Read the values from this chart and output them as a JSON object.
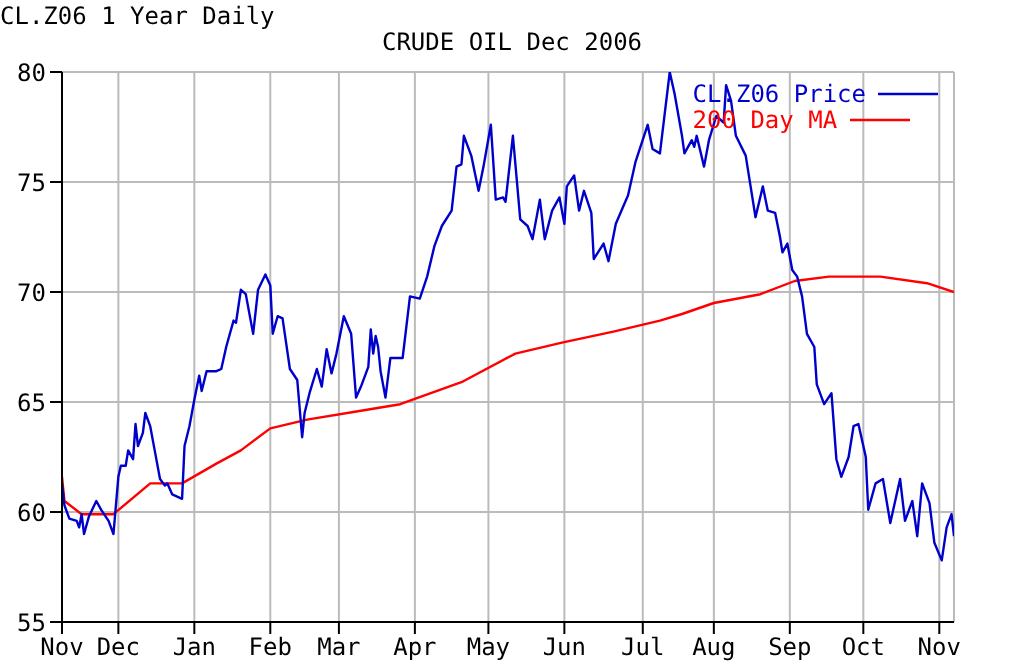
{
  "chart_data": {
    "type": "line",
    "title": "CRUDE OIL Dec 2006",
    "annotations": [
      "CL.Z06 1 Year Daily"
    ],
    "xlim": [
      "2005-11-08",
      "2006-11-07"
    ],
    "xticks": [
      {
        "value": "2005-11-08",
        "label": "Nov"
      },
      {
        "value": "2005-12-01",
        "label": "Dec"
      },
      {
        "value": "2006-01-01",
        "label": "Jan"
      },
      {
        "value": "2006-02-01",
        "label": "Feb"
      },
      {
        "value": "2006-03-01",
        "label": "Mar"
      },
      {
        "value": "2006-04-01",
        "label": "Apr"
      },
      {
        "value": "2006-05-01",
        "label": "May"
      },
      {
        "value": "2006-06-01",
        "label": "Jun"
      },
      {
        "value": "2006-07-03",
        "label": "Jul"
      },
      {
        "value": "2006-08-01",
        "label": "Aug"
      },
      {
        "value": "2006-09-01",
        "label": "Sep"
      },
      {
        "value": "2006-10-01",
        "label": "Oct"
      },
      {
        "value": "2006-11-01",
        "label": "Nov"
      }
    ],
    "ylim": [
      55,
      80
    ],
    "yticks": [
      55,
      60,
      65,
      70,
      75,
      80
    ],
    "grid": true,
    "legend": "top right",
    "marker": "none",
    "line_style": "solid",
    "series": [
      {
        "name": "CL.Z06 Price",
        "color": "#0000cc",
        "x": [
          "2005-11-08",
          "2005-11-09",
          "2005-11-11",
          "2005-11-14",
          "2005-11-15",
          "2005-11-16",
          "2005-11-17",
          "2005-11-19",
          "2005-11-22",
          "2005-11-24",
          "2005-11-27",
          "2005-11-29",
          "2005-12-01",
          "2005-12-02",
          "2005-12-04",
          "2005-12-05",
          "2005-12-07",
          "2005-12-08",
          "2005-12-09",
          "2005-12-11",
          "2005-12-12",
          "2005-12-14",
          "2005-12-16",
          "2005-12-18",
          "2005-12-20",
          "2005-12-21",
          "2005-12-23",
          "2005-12-25",
          "2005-12-27",
          "2005-12-28",
          "2005-12-30",
          "2006-01-01",
          "2006-01-03",
          "2006-01-04",
          "2006-01-06",
          "2006-01-10",
          "2006-01-12",
          "2006-01-14",
          "2006-01-17",
          "2006-01-18",
          "2006-01-20",
          "2006-01-22",
          "2006-01-24",
          "2006-01-25",
          "2006-01-27",
          "2006-01-30",
          "2006-02-01",
          "2006-02-02",
          "2006-02-04",
          "2006-02-06",
          "2006-02-09",
          "2006-02-12",
          "2006-02-14",
          "2006-02-15",
          "2006-02-17",
          "2006-02-20",
          "2006-02-22",
          "2006-02-24",
          "2006-02-26",
          "2006-02-28",
          "2006-03-03",
          "2006-03-06",
          "2006-03-08",
          "2006-03-10",
          "2006-03-13",
          "2006-03-14",
          "2006-03-15",
          "2006-03-16",
          "2006-03-17",
          "2006-03-18",
          "2006-03-20",
          "2006-03-22",
          "2006-03-27",
          "2006-03-30",
          "2006-04-03",
          "2006-04-06",
          "2006-04-09",
          "2006-04-12",
          "2006-04-16",
          "2006-04-18",
          "2006-04-20",
          "2006-04-21",
          "2006-04-24",
          "2006-04-27",
          "2006-04-29",
          "2006-05-02",
          "2006-05-04",
          "2006-05-07",
          "2006-05-08",
          "2006-05-11",
          "2006-05-14",
          "2006-05-17",
          "2006-05-19",
          "2006-05-22",
          "2006-05-24",
          "2006-05-27",
          "2006-05-30",
          "2006-06-01",
          "2006-06-02",
          "2006-06-05",
          "2006-06-07",
          "2006-06-09",
          "2006-06-12",
          "2006-06-13",
          "2006-06-17",
          "2006-06-19",
          "2006-06-22",
          "2006-06-27",
          "2006-06-30",
          "2006-07-05",
          "2006-07-07",
          "2006-07-10",
          "2006-07-14",
          "2006-07-16",
          "2006-07-19",
          "2006-07-20",
          "2006-07-23",
          "2006-07-24",
          "2006-07-25",
          "2006-07-28",
          "2006-07-30",
          "2006-08-02",
          "2006-08-05",
          "2006-08-06",
          "2006-08-08",
          "2006-08-10",
          "2006-08-14",
          "2006-08-16",
          "2006-08-18",
          "2006-08-21",
          "2006-08-23",
          "2006-08-26",
          "2006-08-28",
          "2006-08-29",
          "2006-08-31",
          "2006-09-02",
          "2006-09-04",
          "2006-09-06",
          "2006-09-08",
          "2006-09-11",
          "2006-09-12",
          "2006-09-15",
          "2006-09-18",
          "2006-09-20",
          "2006-09-22",
          "2006-09-25",
          "2006-09-27",
          "2006-09-29",
          "2006-10-02",
          "2006-10-03",
          "2006-10-06",
          "2006-10-09",
          "2006-10-12",
          "2006-10-16",
          "2006-10-18",
          "2006-10-21",
          "2006-10-23",
          "2006-10-25",
          "2006-10-28",
          "2006-10-30",
          "2006-11-02",
          "2006-11-04",
          "2006-11-06",
          "2006-11-07"
        ],
        "values": [
          61.3,
          60.3,
          59.7,
          59.6,
          59.3,
          59.9,
          59.0,
          59.8,
          60.5,
          60.1,
          59.6,
          59.0,
          61.6,
          62.1,
          62.1,
          62.8,
          62.4,
          64.0,
          63.0,
          63.6,
          64.5,
          63.9,
          62.7,
          61.5,
          61.2,
          61.3,
          60.8,
          60.7,
          60.6,
          63.0,
          63.9,
          65.1,
          66.2,
          65.5,
          66.4,
          66.4,
          66.5,
          67.5,
          68.7,
          68.6,
          70.1,
          69.9,
          68.7,
          68.1,
          70.1,
          70.8,
          70.3,
          68.1,
          68.9,
          68.8,
          66.5,
          66.0,
          63.4,
          64.5,
          65.4,
          66.5,
          65.7,
          67.4,
          66.3,
          67.2,
          68.9,
          68.1,
          65.2,
          65.7,
          66.6,
          68.3,
          67.2,
          68.0,
          67.5,
          66.4,
          65.2,
          67.0,
          67.0,
          69.8,
          69.7,
          70.7,
          72.1,
          73.0,
          73.7,
          75.7,
          75.8,
          77.1,
          76.2,
          74.6,
          75.7,
          77.6,
          74.2,
          74.3,
          74.1,
          77.1,
          73.3,
          73.0,
          72.4,
          74.2,
          72.4,
          73.7,
          74.3,
          73.1,
          74.8,
          75.3,
          73.7,
          74.6,
          73.6,
          71.5,
          72.2,
          71.4,
          73.1,
          74.4,
          75.9,
          77.6,
          76.5,
          76.3,
          80.0,
          79.0,
          77.1,
          76.3,
          76.9,
          76.6,
          77.1,
          75.7,
          76.9,
          78.0,
          77.7,
          79.4,
          78.7,
          77.1,
          76.2,
          74.8,
          73.4,
          74.8,
          73.7,
          73.6,
          72.5,
          71.8,
          72.2,
          71.0,
          70.7,
          69.8,
          68.1,
          67.5,
          65.8,
          64.9,
          65.4,
          62.4,
          61.6,
          62.5,
          63.9,
          64.0,
          62.5,
          60.1,
          61.3,
          61.5,
          59.5,
          61.5,
          59.6,
          60.5,
          58.9,
          61.3,
          60.4,
          58.6,
          57.8,
          59.3,
          59.9,
          58.9
        ]
      },
      {
        "name": "200 Day MA",
        "color": "#ff0000",
        "x": [
          "2005-11-08",
          "2005-11-09",
          "2005-11-16",
          "2005-11-29",
          "2005-12-14",
          "2005-12-27",
          "2006-01-10",
          "2006-01-20",
          "2006-02-01",
          "2006-02-16",
          "2006-03-10",
          "2006-03-26",
          "2006-04-20",
          "2006-05-12",
          "2006-05-31",
          "2006-06-21",
          "2006-07-10",
          "2006-07-19",
          "2006-08-01",
          "2006-08-20",
          "2006-09-03",
          "2006-09-17",
          "2006-10-08",
          "2006-10-27",
          "2006-11-07"
        ],
        "values": [
          61.6,
          60.5,
          59.9,
          59.9,
          61.3,
          61.3,
          62.2,
          62.8,
          63.8,
          64.2,
          64.6,
          64.9,
          65.9,
          67.2,
          67.7,
          68.2,
          68.7,
          69.0,
          69.5,
          69.9,
          70.5,
          70.7,
          70.7,
          70.4,
          70.0
        ]
      }
    ]
  }
}
